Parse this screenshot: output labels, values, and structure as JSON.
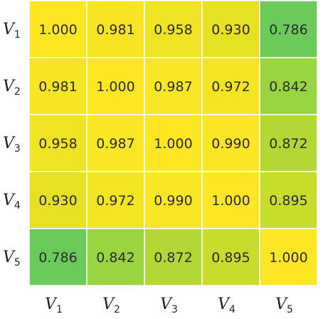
{
  "chart_data": {
    "type": "heatmap",
    "row_labels": [
      {
        "base": "V",
        "sub": "1"
      },
      {
        "base": "V",
        "sub": "2"
      },
      {
        "base": "V",
        "sub": "3"
      },
      {
        "base": "V",
        "sub": "4"
      },
      {
        "base": "V",
        "sub": "5"
      }
    ],
    "col_labels": [
      {
        "base": "V",
        "sub": "1"
      },
      {
        "base": "V",
        "sub": "2"
      },
      {
        "base": "V",
        "sub": "3"
      },
      {
        "base": "V",
        "sub": "4"
      },
      {
        "base": "V",
        "sub": "5"
      }
    ],
    "values": [
      [
        1.0,
        0.981,
        0.958,
        0.93,
        0.786
      ],
      [
        0.981,
        1.0,
        0.987,
        0.972,
        0.842
      ],
      [
        0.958,
        0.987,
        1.0,
        0.99,
        0.872
      ],
      [
        0.93,
        0.972,
        0.99,
        1.0,
        0.895
      ],
      [
        0.786,
        0.842,
        0.872,
        0.895,
        1.0
      ]
    ],
    "value_labels": [
      [
        "1.000",
        "0.981",
        "0.958",
        "0.930",
        "0.786"
      ],
      [
        "0.981",
        "1.000",
        "0.987",
        "0.972",
        "0.842"
      ],
      [
        "0.958",
        "0.987",
        "1.000",
        "0.990",
        "0.872"
      ],
      [
        "0.930",
        "0.972",
        "0.990",
        "1.000",
        "0.895"
      ],
      [
        "0.786",
        "0.842",
        "0.872",
        "0.895",
        "1.000"
      ]
    ],
    "colormap": {
      "low_value": 0.786,
      "high_value": 1.0,
      "stops": [
        "#6acb5a",
        "#a6d63a",
        "#e6e123",
        "#fde725"
      ]
    },
    "grid": true,
    "colorbar": false
  }
}
